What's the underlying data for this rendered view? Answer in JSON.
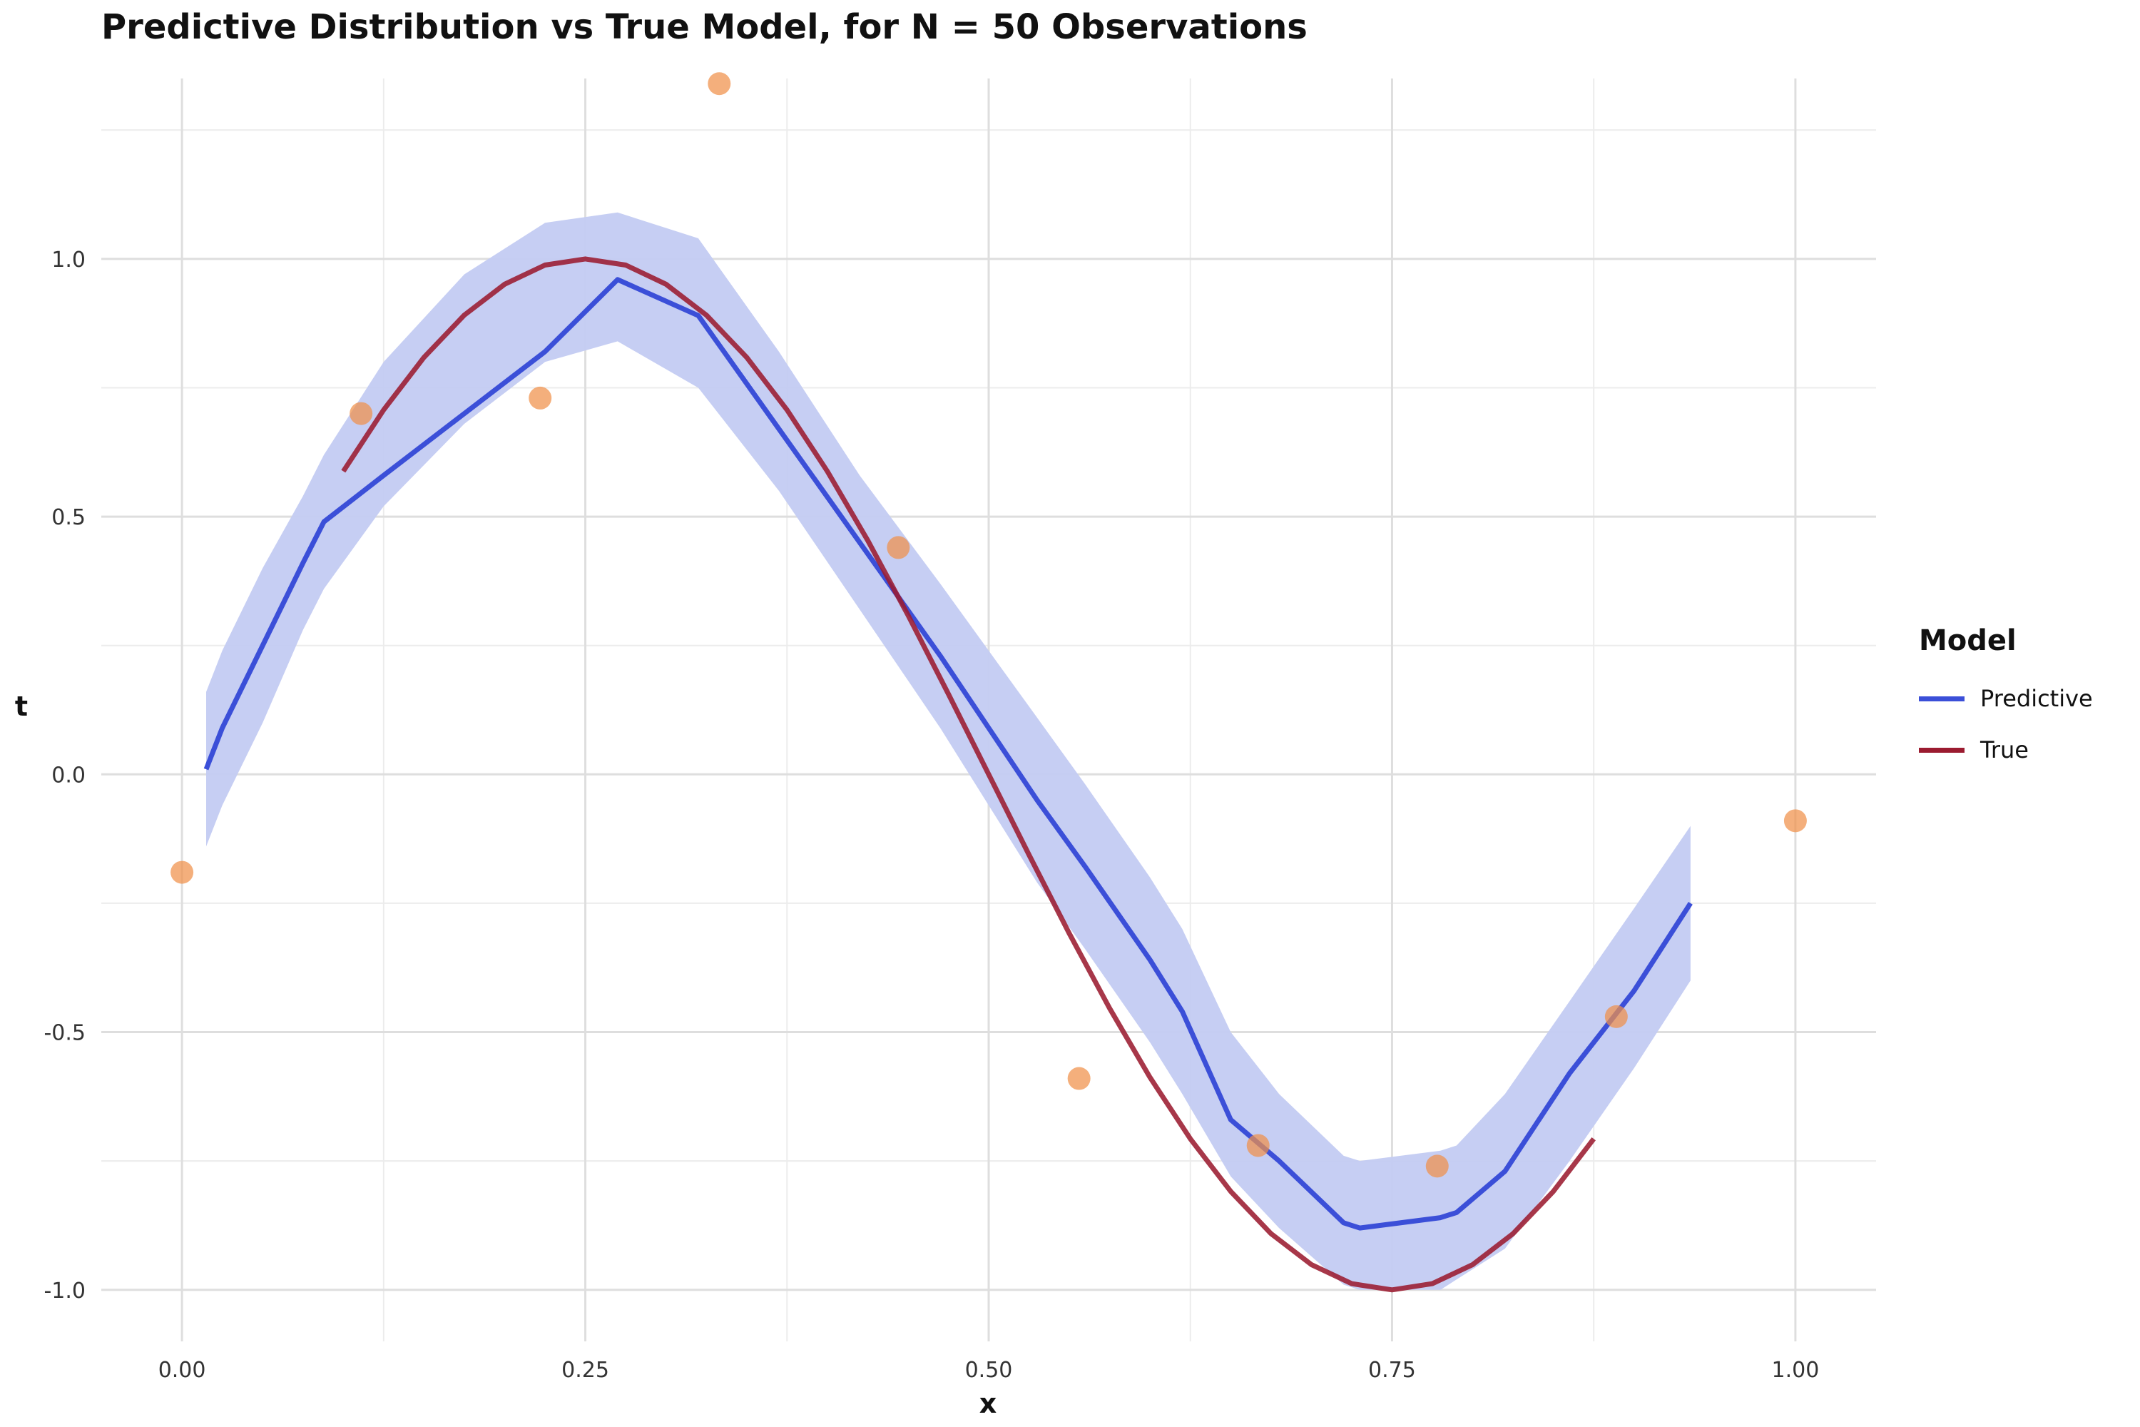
{
  "chart_data": {
    "type": "line",
    "title": "Predictive Distribution vs True Model, for N = 50 Observations",
    "xlabel": "x",
    "ylabel": "t",
    "xlim": [
      -0.05,
      1.05
    ],
    "ylim": [
      -1.1,
      1.35
    ],
    "x_ticks": [
      0.0,
      0.25,
      0.5,
      0.75,
      1.0
    ],
    "x_tick_labels": [
      "0.00",
      "0.25",
      "0.50",
      "0.75",
      "1.00"
    ],
    "y_ticks": [
      -1.0,
      -0.5,
      0.0,
      0.5,
      1.0
    ],
    "y_tick_labels": [
      "-1.0",
      "-0.5",
      "0.0",
      "0.5",
      "1.0"
    ],
    "grid": true,
    "legend": {
      "title": "Model",
      "placement": "right",
      "entries": [
        {
          "label": "Predictive",
          "color": "#3b4fd8"
        },
        {
          "label": "True",
          "color": "#9b1b30"
        }
      ]
    },
    "colors": {
      "predictive": "#3b4fd8",
      "band": "#c3cbf2",
      "true": "#9b1b30",
      "points": "#f0904a"
    },
    "series": [
      {
        "name": "Predictive",
        "x": [
          0.015,
          0.025,
          0.05,
          0.075,
          0.088,
          0.125,
          0.175,
          0.225,
          0.27,
          0.32,
          0.37,
          0.42,
          0.47,
          0.5,
          0.53,
          0.56,
          0.6,
          0.62,
          0.65,
          0.68,
          0.72,
          0.73,
          0.78,
          0.79,
          0.82,
          0.86,
          0.9,
          0.935
        ],
        "y": [
          0.01,
          0.09,
          0.25,
          0.41,
          0.49,
          0.58,
          0.7,
          0.82,
          0.96,
          0.89,
          0.67,
          0.45,
          0.23,
          0.09,
          -0.05,
          -0.18,
          -0.36,
          -0.46,
          -0.67,
          -0.75,
          -0.87,
          -0.88,
          -0.86,
          -0.85,
          -0.77,
          -0.58,
          -0.42,
          -0.25
        ],
        "band_lower": [
          -0.14,
          -0.06,
          0.1,
          0.28,
          0.36,
          0.52,
          0.68,
          0.8,
          0.84,
          0.75,
          0.55,
          0.32,
          0.09,
          -0.06,
          -0.21,
          -0.34,
          -0.52,
          -0.62,
          -0.78,
          -0.88,
          -0.99,
          -1.0,
          -1.0,
          -0.98,
          -0.92,
          -0.75,
          -0.57,
          -0.4
        ],
        "band_upper": [
          0.16,
          0.24,
          0.4,
          0.54,
          0.62,
          0.8,
          0.97,
          1.07,
          1.09,
          1.04,
          0.82,
          0.58,
          0.37,
          0.24,
          0.11,
          -0.02,
          -0.2,
          -0.3,
          -0.5,
          -0.62,
          -0.74,
          -0.75,
          -0.73,
          -0.72,
          -0.62,
          -0.44,
          -0.26,
          -0.1
        ]
      },
      {
        "name": "True",
        "x": [
          0.1,
          0.125,
          0.15,
          0.175,
          0.2,
          0.225,
          0.25,
          0.275,
          0.3,
          0.325,
          0.35,
          0.375,
          0.4,
          0.425,
          0.45,
          0.475,
          0.5,
          0.525,
          0.55,
          0.575,
          0.6,
          0.625,
          0.65,
          0.675,
          0.7,
          0.725,
          0.75,
          0.775,
          0.8,
          0.825,
          0.85,
          0.875
        ],
        "y": [
          0.588,
          0.707,
          0.809,
          0.891,
          0.951,
          0.988,
          1.0,
          0.988,
          0.951,
          0.891,
          0.809,
          0.707,
          0.588,
          0.454,
          0.309,
          0.156,
          0.0,
          -0.156,
          -0.309,
          -0.454,
          -0.588,
          -0.707,
          -0.809,
          -0.891,
          -0.951,
          -0.988,
          -1.0,
          -0.988,
          -0.951,
          -0.891,
          -0.809,
          -0.707
        ]
      }
    ],
    "points": {
      "x": [
        0.0,
        0.111,
        0.222,
        0.333,
        0.444,
        0.556,
        0.667,
        0.778,
        0.889,
        1.0
      ],
      "y": [
        -0.19,
        0.7,
        0.73,
        1.34,
        0.44,
        -0.59,
        -0.72,
        -0.76,
        -0.47,
        -0.09
      ]
    }
  }
}
